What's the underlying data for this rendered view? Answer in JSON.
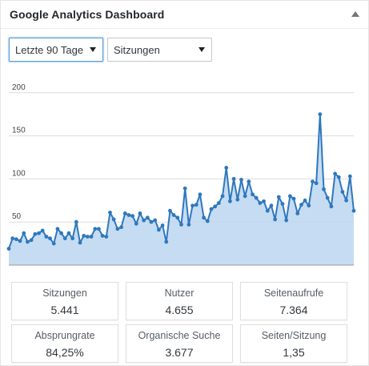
{
  "widget": {
    "title": "Google Analytics Dashboard"
  },
  "filters": {
    "range": {
      "selected": "Letzte 90 Tage"
    },
    "metric": {
      "selected": "Sitzungen"
    }
  },
  "stats": [
    {
      "label": "Sitzungen",
      "value": "5.441"
    },
    {
      "label": "Nutzer",
      "value": "4.655"
    },
    {
      "label": "Seitenaufrufe",
      "value": "7.364"
    },
    {
      "label": "Absprungrate",
      "value": "84,25%"
    },
    {
      "label": "Organische Suche",
      "value": "3.677"
    },
    {
      "label": "Seiten/Sitzung",
      "value": "1,35"
    }
  ],
  "chart_data": {
    "type": "area",
    "y_ticks": [
      50,
      100,
      150,
      200
    ],
    "ylim": [
      0,
      210
    ],
    "grid": true,
    "line_color": "#2f78bd",
    "fill_color": "#bcd6f0",
    "values": [
      19,
      31,
      30,
      28,
      37,
      27,
      29,
      36,
      37,
      40,
      33,
      31,
      25,
      42,
      37,
      31,
      37,
      31,
      50,
      26,
      34,
      33,
      33,
      42,
      42,
      34,
      33,
      61,
      53,
      42,
      44,
      60,
      58,
      57,
      48,
      60,
      52,
      55,
      50,
      52,
      41,
      46,
      27,
      63,
      58,
      55,
      47,
      89,
      47,
      69,
      70,
      82,
      55,
      51,
      65,
      68,
      72,
      80,
      113,
      74,
      100,
      76,
      99,
      80,
      97,
      82,
      78,
      72,
      74,
      63,
      69,
      53,
      79,
      71,
      52,
      80,
      77,
      60,
      70,
      75,
      69,
      97,
      95,
      175,
      88,
      78,
      68,
      106,
      102,
      85,
      75,
      103,
      63
    ]
  }
}
